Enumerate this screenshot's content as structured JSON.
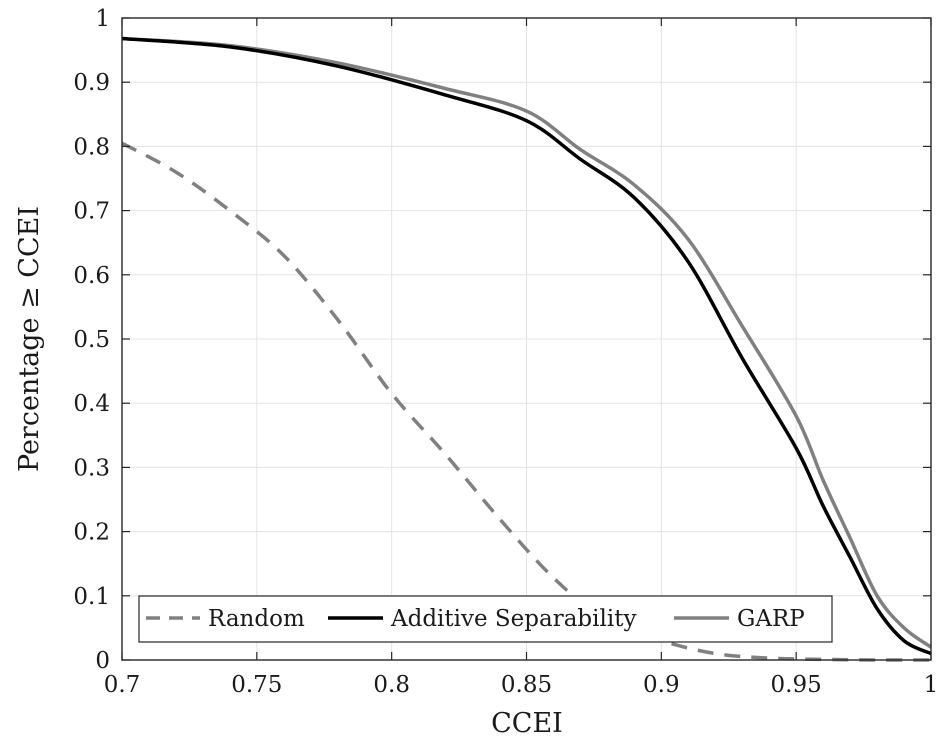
{
  "chart_data": {
    "type": "line",
    "xlabel": "CCEI",
    "ylabel": "Percentage ≥ CCEI",
    "xlim": [
      0.7,
      1
    ],
    "ylim": [
      0,
      1
    ],
    "grid": true,
    "legend_position": "bottom",
    "x_ticks": [
      "0.7",
      "0.75",
      "0.8",
      "0.85",
      "0.9",
      "0.95",
      "1"
    ],
    "y_ticks": [
      "0",
      "0.1",
      "0.2",
      "0.3",
      "0.4",
      "0.5",
      "0.6",
      "0.7",
      "0.8",
      "0.9",
      "1"
    ],
    "series": [
      {
        "name": "Random",
        "style": "dashed",
        "color": "#808080",
        "points": [
          [
            0.7,
            0.805
          ],
          [
            0.72,
            0.76
          ],
          [
            0.74,
            0.7
          ],
          [
            0.76,
            0.63
          ],
          [
            0.78,
            0.53
          ],
          [
            0.8,
            0.415
          ],
          [
            0.82,
            0.32
          ],
          [
            0.84,
            0.22
          ],
          [
            0.86,
            0.128
          ],
          [
            0.88,
            0.06
          ],
          [
            0.9,
            0.03
          ],
          [
            0.92,
            0.01
          ],
          [
            0.94,
            0.003
          ],
          [
            0.96,
            0.001
          ],
          [
            0.98,
            0.0
          ],
          [
            1.0,
            0.0
          ]
        ]
      },
      {
        "name": "Additive Separability",
        "style": "solid",
        "color": "#000000",
        "points": [
          [
            0.7,
            0.968
          ],
          [
            0.74,
            0.955
          ],
          [
            0.78,
            0.925
          ],
          [
            0.82,
            0.88
          ],
          [
            0.85,
            0.84
          ],
          [
            0.87,
            0.78
          ],
          [
            0.89,
            0.72
          ],
          [
            0.91,
            0.62
          ],
          [
            0.93,
            0.47
          ],
          [
            0.95,
            0.33
          ],
          [
            0.96,
            0.24
          ],
          [
            0.97,
            0.16
          ],
          [
            0.98,
            0.08
          ],
          [
            0.99,
            0.03
          ],
          [
            1.0,
            0.01
          ]
        ]
      },
      {
        "name": "GARP",
        "style": "solid",
        "color": "#808080",
        "points": [
          [
            0.7,
            0.968
          ],
          [
            0.74,
            0.957
          ],
          [
            0.78,
            0.93
          ],
          [
            0.82,
            0.89
          ],
          [
            0.85,
            0.855
          ],
          [
            0.87,
            0.795
          ],
          [
            0.89,
            0.74
          ],
          [
            0.91,
            0.655
          ],
          [
            0.93,
            0.52
          ],
          [
            0.95,
            0.38
          ],
          [
            0.96,
            0.28
          ],
          [
            0.97,
            0.19
          ],
          [
            0.98,
            0.1
          ],
          [
            0.99,
            0.05
          ],
          [
            1.0,
            0.02
          ]
        ]
      }
    ]
  }
}
